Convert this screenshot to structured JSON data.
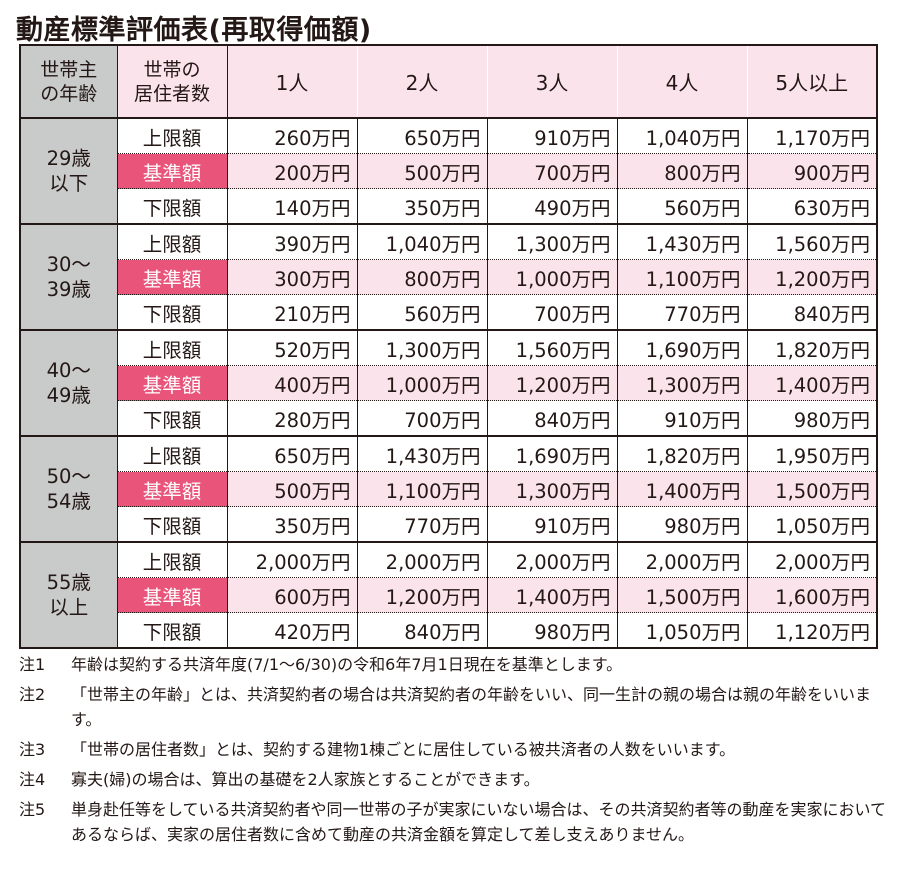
{
  "title": "動産標準評価表(再取得価額)",
  "table": {
    "header": {
      "age": "世帯主\nの年齢",
      "residents": "世帯の\n居住者数",
      "counts": [
        "1人",
        "2人",
        "3人",
        "4人",
        "5人以上"
      ]
    },
    "kinds": [
      "上限額",
      "基準額",
      "下限額"
    ],
    "groups": [
      {
        "age": "29歳\n以下",
        "rows": [
          [
            "260万円",
            "650万円",
            "910万円",
            "1,040万円",
            "1,170万円"
          ],
          [
            "200万円",
            "500万円",
            "700万円",
            "800万円",
            "900万円"
          ],
          [
            "140万円",
            "350万円",
            "490万円",
            "560万円",
            "630万円"
          ]
        ]
      },
      {
        "age": "30〜\n39歳",
        "rows": [
          [
            "390万円",
            "1,040万円",
            "1,300万円",
            "1,430万円",
            "1,560万円"
          ],
          [
            "300万円",
            "800万円",
            "1,000万円",
            "1,100万円",
            "1,200万円"
          ],
          [
            "210万円",
            "560万円",
            "700万円",
            "770万円",
            "840万円"
          ]
        ]
      },
      {
        "age": "40〜\n49歳",
        "rows": [
          [
            "520万円",
            "1,300万円",
            "1,560万円",
            "1,690万円",
            "1,820万円"
          ],
          [
            "400万円",
            "1,000万円",
            "1,200万円",
            "1,300万円",
            "1,400万円"
          ],
          [
            "280万円",
            "700万円",
            "840万円",
            "910万円",
            "980万円"
          ]
        ]
      },
      {
        "age": "50〜\n54歳",
        "rows": [
          [
            "650万円",
            "1,430万円",
            "1,690万円",
            "1,820万円",
            "1,950万円"
          ],
          [
            "500万円",
            "1,100万円",
            "1,300万円",
            "1,400万円",
            "1,500万円"
          ],
          [
            "350万円",
            "770万円",
            "910万円",
            "980万円",
            "1,050万円"
          ]
        ]
      },
      {
        "age": "55歳\n以上",
        "rows": [
          [
            "2,000万円",
            "2,000万円",
            "2,000万円",
            "2,000万円",
            "2,000万円"
          ],
          [
            "600万円",
            "1,200万円",
            "1,400万円",
            "1,500万円",
            "1,600万円"
          ],
          [
            "420万円",
            "840万円",
            "980万円",
            "1,050万円",
            "1,120万円"
          ]
        ]
      }
    ]
  },
  "notes": [
    {
      "label": "注1",
      "text": "年齢は契約する共済年度(7/1〜6/30)の令和6年7月1日現在を基準とします。"
    },
    {
      "label": "注2",
      "text": "「世帯主の年齢」とは、共済契約者の場合は共済契約者の年齢をいい、同一生計の親の場合は親の年齢をいいます。"
    },
    {
      "label": "注3",
      "text": "「世帯の居住者数」とは、契約する建物1棟ごとに居住している被共済者の人数をいいます。"
    },
    {
      "label": "注4",
      "text": "寡夫(婦)の場合は、算出の基礎を2人家族とすることができます。"
    },
    {
      "label": "注5",
      "text": "単身赴任等をしている共済契約者や同一世帯の子が実家にいない場合は、その共済契約者等の動産を実家においてあるならば、実家の居住者数に含めて動産の共済金額を算定して差し支えありません。"
    }
  ]
}
